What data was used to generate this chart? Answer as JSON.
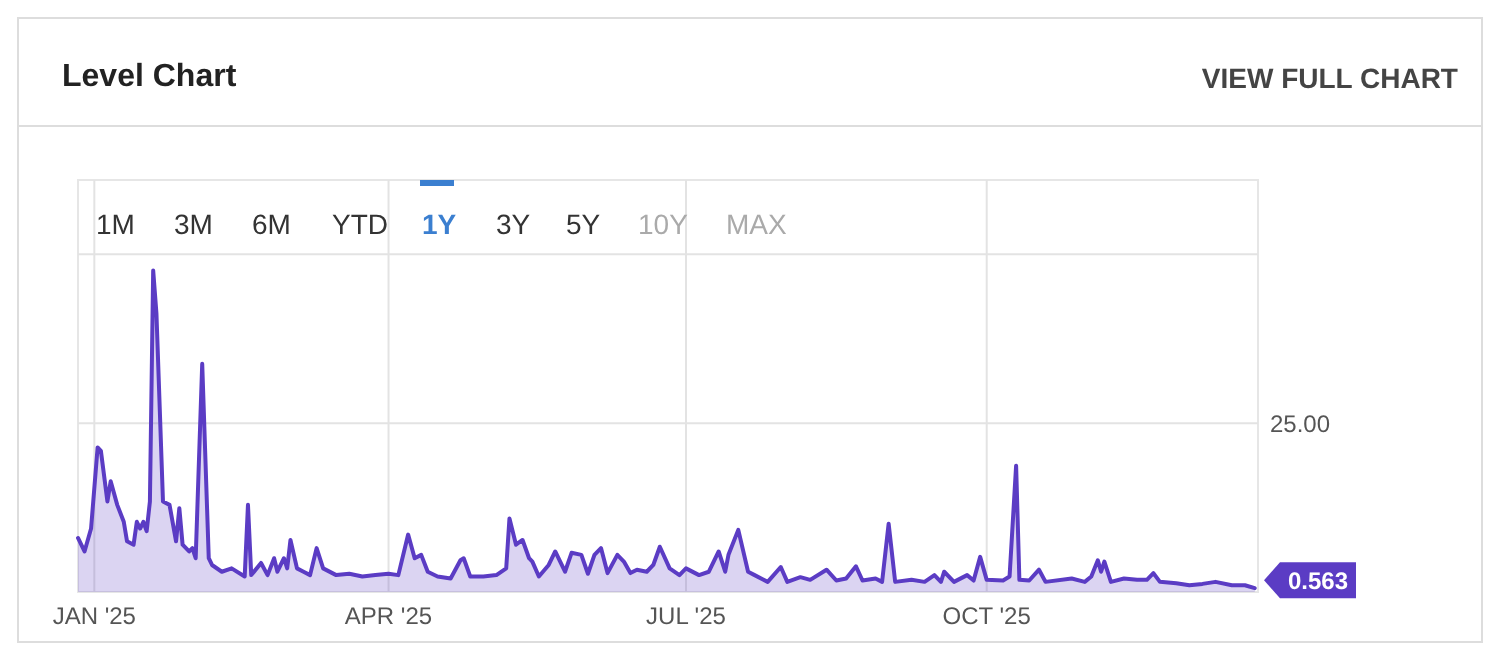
{
  "chart_data": {
    "type": "area",
    "title": "Level Chart",
    "annotations": [
      "VIEW FULL CHART",
      "1M",
      "3M",
      "6M",
      "YTD",
      "1Y",
      "3Y",
      "5Y",
      "10Y",
      "MAX",
      {
        "text": "0.563",
        "x": "2025-12-22",
        "y": 0.563
      }
    ],
    "xlim": [
      "2024-12-27",
      "2025-12-23"
    ],
    "xticks": [
      {
        "value": "2025-01-01",
        "label": "JAN '25"
      },
      {
        "value": "2025-04-01",
        "label": "APR '25"
      },
      {
        "value": "2025-07-01",
        "label": "JUL '25"
      },
      {
        "value": "2025-10-01",
        "label": "OCT '25"
      }
    ],
    "ylim": [
      0,
      61
    ],
    "yticks": [
      {
        "value": 25,
        "label": "25.00"
      },
      {
        "value": 50,
        "label": null
      }
    ],
    "grid": true,
    "x": [
      "2024-12-27",
      "2024-12-29",
      "2024-12-31",
      "2025-01-02",
      "2025-01-03",
      "2025-01-05",
      "2025-01-06",
      "2025-01-08",
      "2025-01-10",
      "2025-01-11",
      "2025-01-13",
      "2025-01-14",
      "2025-01-15",
      "2025-01-16",
      "2025-01-17",
      "2025-01-18",
      "2025-01-19",
      "2025-01-20",
      "2025-01-22",
      "2025-01-24",
      "2025-01-26",
      "2025-01-27",
      "2025-01-28",
      "2025-01-30",
      "2025-01-31",
      "2025-02-01",
      "2025-02-03",
      "2025-02-05",
      "2025-02-06",
      "2025-02-09",
      "2025-02-12",
      "2025-02-16",
      "2025-02-17",
      "2025-02-18",
      "2025-02-21",
      "2025-02-23",
      "2025-02-25",
      "2025-02-26",
      "2025-02-28",
      "2025-03-01",
      "2025-03-02",
      "2025-03-04",
      "2025-03-06",
      "2025-03-08",
      "2025-03-10",
      "2025-03-12",
      "2025-03-16",
      "2025-03-20",
      "2025-03-24",
      "2025-03-28",
      "2025-04-01",
      "2025-04-04",
      "2025-04-07",
      "2025-04-09",
      "2025-04-11",
      "2025-04-13",
      "2025-04-16",
      "2025-04-20",
      "2025-04-23",
      "2025-04-24",
      "2025-04-26",
      "2025-04-30",
      "2025-05-04",
      "2025-05-07",
      "2025-05-08",
      "2025-05-10",
      "2025-05-12",
      "2025-05-14",
      "2025-05-15",
      "2025-05-17",
      "2025-05-20",
      "2025-05-22",
      "2025-05-25",
      "2025-05-27",
      "2025-05-30",
      "2025-06-01",
      "2025-06-03",
      "2025-06-05",
      "2025-06-07",
      "2025-06-10",
      "2025-06-12",
      "2025-06-14",
      "2025-06-16",
      "2025-06-19",
      "2025-06-21",
      "2025-06-23",
      "2025-06-26",
      "2025-06-29",
      "2025-07-01",
      "2025-07-05",
      "2025-07-08",
      "2025-07-11",
      "2025-07-13",
      "2025-07-14",
      "2025-07-17",
      "2025-07-20",
      "2025-07-22",
      "2025-07-26",
      "2025-07-30",
      "2025-08-01",
      "2025-08-05",
      "2025-08-08",
      "2025-08-13",
      "2025-08-16",
      "2025-08-19",
      "2025-08-22",
      "2025-08-24",
      "2025-08-28",
      "2025-08-30",
      "2025-09-01",
      "2025-09-03",
      "2025-09-08",
      "2025-09-12",
      "2025-09-15",
      "2025-09-17",
      "2025-09-18",
      "2025-09-21",
      "2025-09-25",
      "2025-09-27",
      "2025-09-29",
      "2025-10-01",
      "2025-10-06",
      "2025-10-08",
      "2025-10-10",
      "2025-10-11",
      "2025-10-14",
      "2025-10-17",
      "2025-10-19",
      "2025-10-27",
      "2025-10-31",
      "2025-11-02",
      "2025-11-04",
      "2025-11-05",
      "2025-11-06",
      "2025-11-08",
      "2025-11-12",
      "2025-11-16",
      "2025-11-19",
      "2025-11-21",
      "2025-11-23",
      "2025-11-28",
      "2025-12-02",
      "2025-12-06",
      "2025-12-10",
      "2025-12-15",
      "2025-12-19",
      "2025-12-22"
    ],
    "series": [
      {
        "color": "#5b3cc4",
        "values": [
          8.0,
          6.0,
          9.4,
          21.4,
          20.9,
          13.4,
          16.4,
          12.9,
          10.4,
          7.5,
          7.0,
          10.4,
          9.4,
          10.4,
          9.0,
          13.4,
          47.6,
          41.2,
          13.4,
          12.9,
          7.5,
          12.4,
          7.0,
          6.0,
          6.5,
          5.0,
          33.8,
          5.0,
          4.0,
          3.0,
          3.5,
          2.3,
          12.9,
          2.5,
          4.3,
          2.5,
          5.0,
          3.0,
          5.0,
          3.5,
          7.7,
          3.5,
          3.0,
          2.5,
          6.5,
          3.5,
          2.5,
          2.7,
          2.3,
          2.5,
          2.7,
          2.5,
          8.5,
          5.0,
          5.5,
          3.0,
          2.3,
          2.0,
          4.7,
          5.0,
          2.3,
          2.3,
          2.5,
          3.5,
          10.9,
          7.0,
          7.7,
          5.0,
          4.5,
          2.3,
          4.0,
          6.0,
          3.0,
          5.8,
          5.5,
          2.7,
          5.5,
          6.5,
          2.8,
          5.5,
          4.5,
          2.8,
          3.3,
          3.0,
          4.0,
          6.7,
          3.5,
          2.5,
          3.5,
          2.5,
          3.0,
          6.0,
          3.0,
          5.5,
          9.2,
          3.0,
          2.5,
          1.5,
          3.7,
          1.5,
          2.2,
          1.8,
          3.3,
          1.7,
          2.0,
          3.8,
          1.7,
          2.0,
          1.5,
          10.1,
          1.5,
          1.8,
          1.5,
          2.5,
          1.5,
          3.0,
          1.5,
          2.5,
          1.7,
          5.2,
          1.8,
          1.7,
          2.3,
          18.7,
          1.8,
          1.7,
          3.3,
          1.5,
          2.0,
          1.5,
          2.3,
          4.7,
          3.0,
          4.5,
          1.5,
          2.0,
          1.8,
          1.8,
          2.8,
          1.5,
          1.3,
          1.0,
          1.2,
          1.5,
          1.0,
          1.0,
          0.563
        ]
      }
    ]
  }
}
